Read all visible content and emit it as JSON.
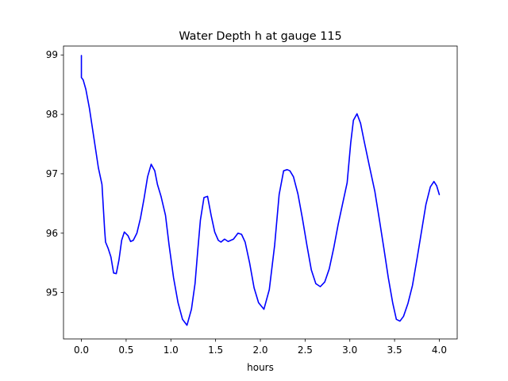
{
  "chart_data": {
    "type": "line",
    "title": "Water Depth h at gauge 115",
    "xlabel": "hours",
    "ylabel": "",
    "xlim": [
      -0.2,
      4.2
    ],
    "ylim": [
      94.22,
      99.15
    ],
    "xticks": [
      0.0,
      0.5,
      1.0,
      1.5,
      2.0,
      2.5,
      3.0,
      3.5,
      4.0
    ],
    "xtick_labels": [
      "0.0",
      "0.5",
      "1.0",
      "1.5",
      "2.0",
      "2.5",
      "3.0",
      "3.5",
      "4.0"
    ],
    "yticks": [
      95,
      96,
      97,
      98,
      99
    ],
    "ytick_labels": [
      "95",
      "96",
      "97",
      "98",
      "99"
    ],
    "grid": false,
    "legend": "none",
    "colors": {
      "line": "#0000ff",
      "axes": "#000000",
      "background": "#ffffff"
    },
    "series": [
      {
        "x": [
          0.0,
          0.0,
          0.02,
          0.05,
          0.09,
          0.14,
          0.19,
          0.23,
          0.26,
          0.27,
          0.3,
          0.33,
          0.36,
          0.39,
          0.42,
          0.45,
          0.48,
          0.52,
          0.55,
          0.58,
          0.62,
          0.66,
          0.7,
          0.74,
          0.78,
          0.82,
          0.85,
          0.89,
          0.94,
          0.98,
          1.03,
          1.08,
          1.13,
          1.18,
          1.23,
          1.27,
          1.3,
          1.33,
          1.37,
          1.41,
          1.45,
          1.49,
          1.53,
          1.56,
          1.6,
          1.64,
          1.7,
          1.75,
          1.79,
          1.83,
          1.88,
          1.93,
          1.98,
          2.04,
          2.1,
          2.16,
          2.21,
          2.26,
          2.3,
          2.33,
          2.37,
          2.42,
          2.47,
          2.52,
          2.57,
          2.62,
          2.67,
          2.72,
          2.77,
          2.82,
          2.87,
          2.92,
          2.97,
          3.01,
          3.04,
          3.08,
          3.12,
          3.16,
          3.22,
          3.28,
          3.33,
          3.38,
          3.43,
          3.48,
          3.52,
          3.56,
          3.6,
          3.65,
          3.7,
          3.75,
          3.8,
          3.85,
          3.9,
          3.94,
          3.97,
          4.0
        ],
        "y": [
          98.99,
          98.62,
          98.58,
          98.42,
          98.1,
          97.6,
          97.1,
          96.82,
          96.05,
          95.85,
          95.74,
          95.6,
          95.33,
          95.32,
          95.55,
          95.88,
          96.02,
          95.96,
          95.86,
          95.88,
          96.0,
          96.25,
          96.58,
          96.95,
          97.16,
          97.05,
          96.82,
          96.62,
          96.3,
          95.8,
          95.25,
          94.83,
          94.55,
          94.45,
          94.72,
          95.15,
          95.7,
          96.22,
          96.6,
          96.62,
          96.3,
          96.02,
          95.88,
          95.85,
          95.9,
          95.86,
          95.9,
          96.0,
          95.98,
          95.85,
          95.5,
          95.08,
          94.83,
          94.72,
          95.05,
          95.8,
          96.65,
          97.05,
          97.07,
          97.05,
          96.95,
          96.66,
          96.25,
          95.8,
          95.38,
          95.15,
          95.1,
          95.18,
          95.4,
          95.75,
          96.15,
          96.5,
          96.85,
          97.52,
          97.9,
          98.01,
          97.85,
          97.55,
          97.12,
          96.7,
          96.23,
          95.75,
          95.25,
          94.82,
          94.55,
          94.52,
          94.6,
          94.82,
          95.12,
          95.56,
          96.02,
          96.48,
          96.78,
          96.87,
          96.8,
          96.65
        ]
      }
    ]
  }
}
